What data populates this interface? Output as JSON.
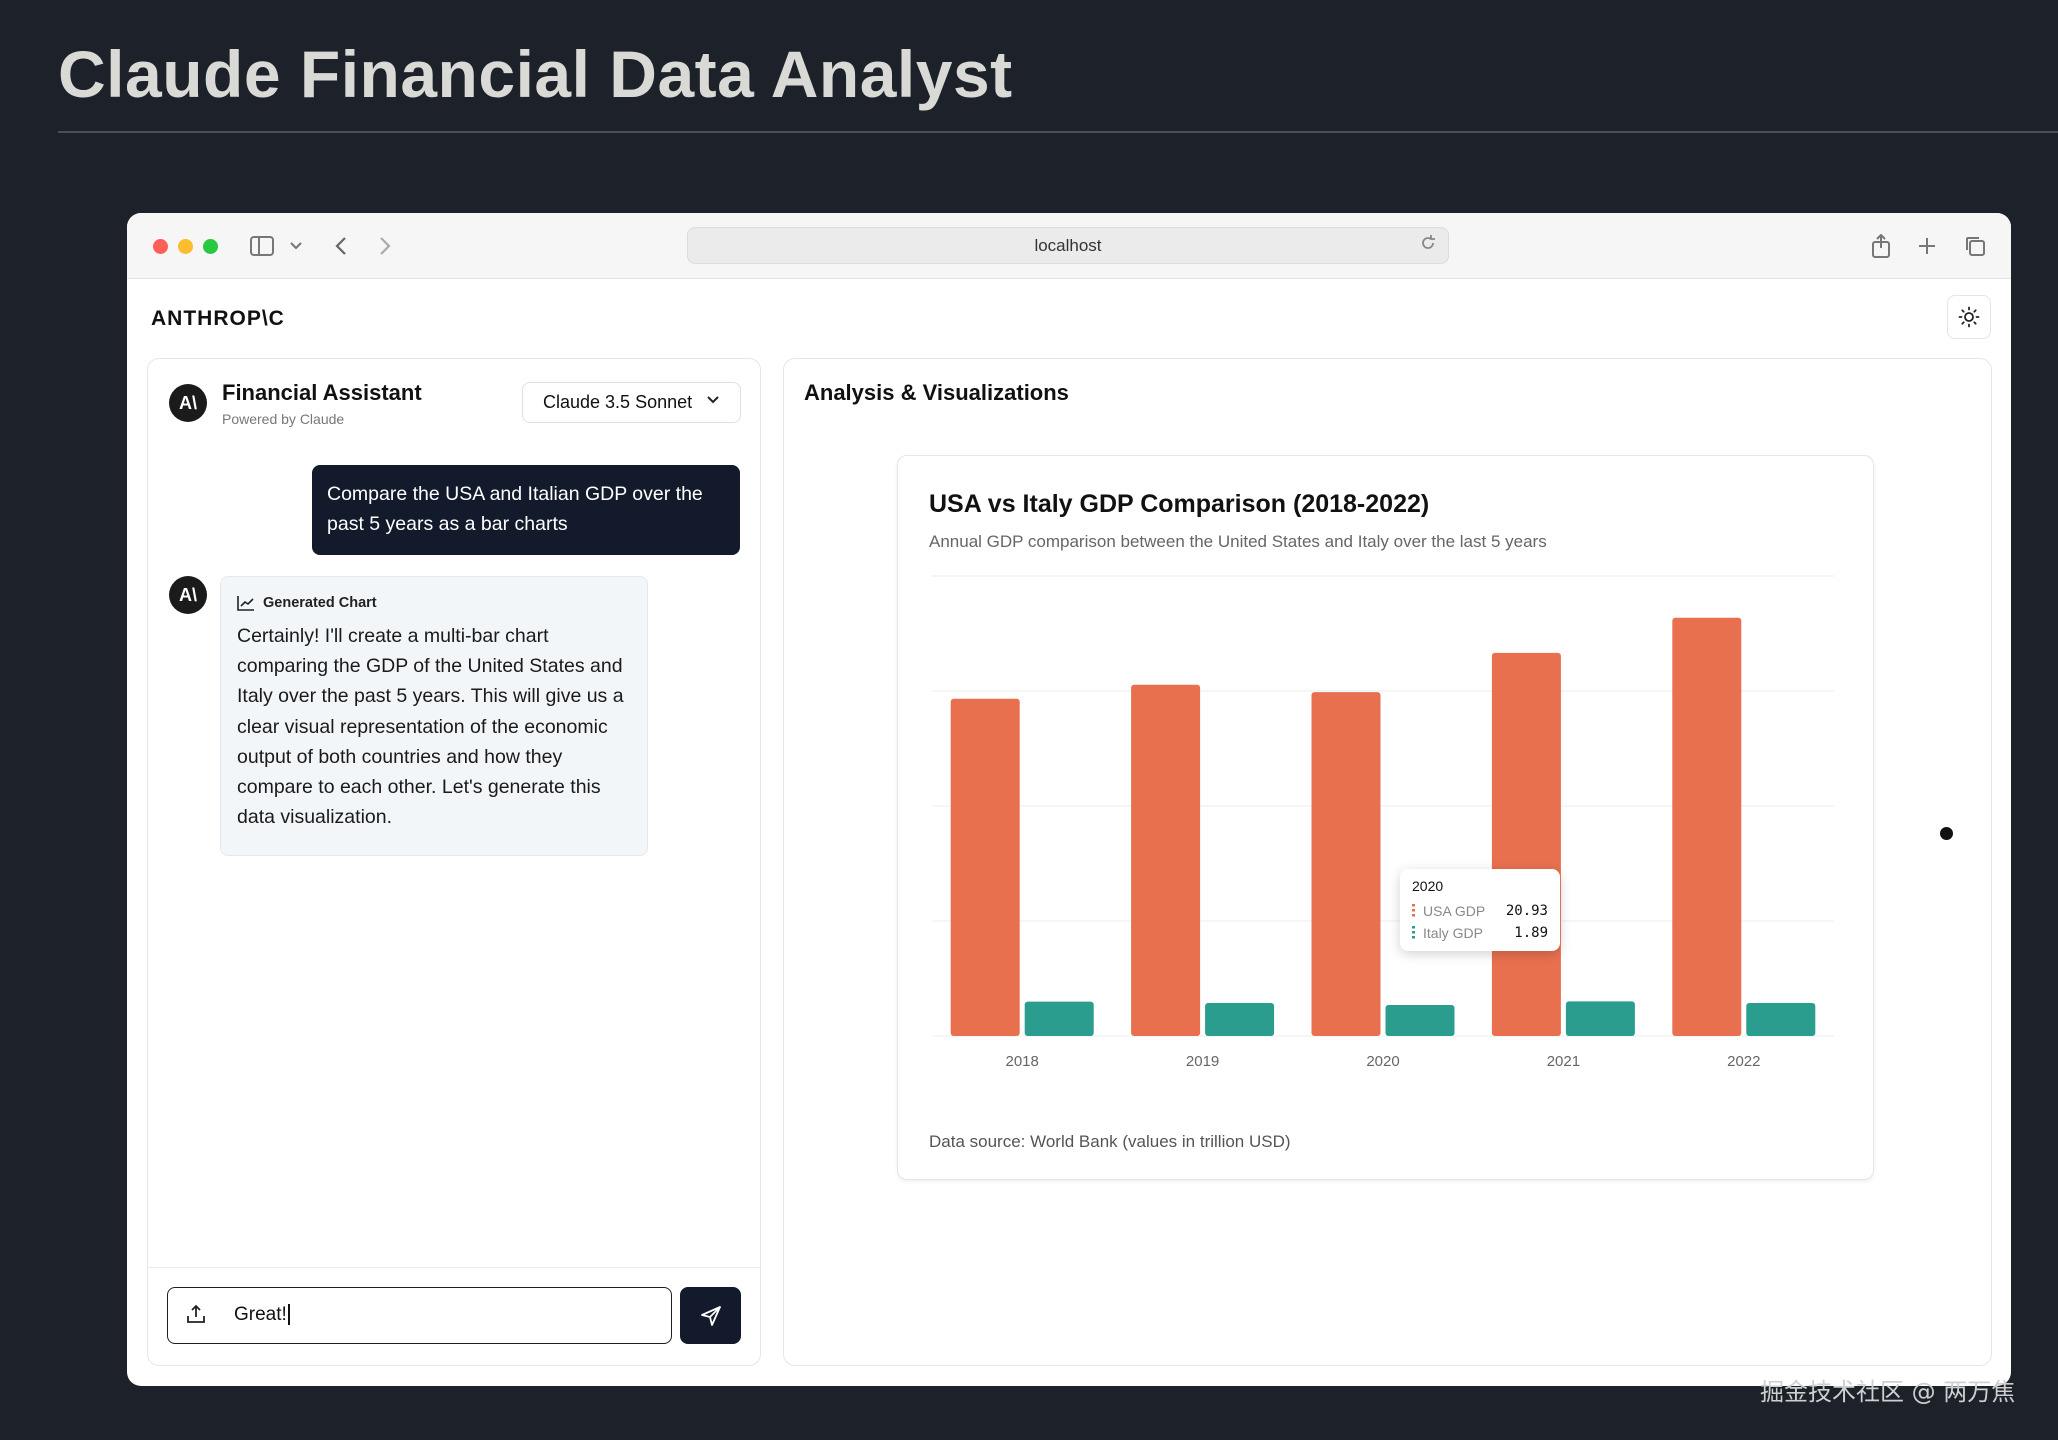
{
  "page": {
    "title": "Claude Financial Data Analyst"
  },
  "browser": {
    "url": "localhost"
  },
  "app": {
    "brand": "ANTHROP\\C"
  },
  "chat": {
    "assistant_name": "Financial Assistant",
    "powered_by": "Powered by Claude",
    "model_selected": "Claude 3.5 Sonnet",
    "avatar_text": "A\\",
    "user_message": "Compare the USA and Italian GDP over the past 5 years as a bar charts",
    "generated_label": "Generated Chart",
    "assistant_message": "Certainly! I'll create a multi-bar chart comparing the GDP of the United States and Italy over the past 5 years. This will give us a clear visual representation of the economic output of both countries and how they compare to each other. Let's generate this data visualization.",
    "input_value": "Great!"
  },
  "viz": {
    "panel_title": "Analysis & Visualizations",
    "footer": "Data source: World Bank (values in trillion USD)"
  },
  "chart_data": {
    "type": "bar",
    "title": "USA vs Italy GDP Comparison (2018-2022)",
    "subtitle": "Annual GDP comparison between the United States and Italy over the last 5 years",
    "categories": [
      "2018",
      "2019",
      "2020",
      "2021",
      "2022"
    ],
    "series": [
      {
        "name": "USA GDP",
        "values": [
          20.53,
          21.38,
          20.93,
          23.32,
          25.46
        ],
        "color": "#e8704f"
      },
      {
        "name": "Italy GDP",
        "values": [
          2.09,
          2.01,
          1.89,
          2.11,
          2.01
        ],
        "color": "#2a9d8f"
      }
    ],
    "ylim": [
      0,
      28
    ],
    "grid": true,
    "tooltip": {
      "category": "2020",
      "rows": [
        {
          "name": "USA GDP",
          "value": "20.93"
        },
        {
          "name": "Italy GDP",
          "value": "1.89"
        }
      ]
    }
  },
  "colors": {
    "accent_dark": "#131a2b",
    "usa": "#e8704f",
    "italy": "#2a9d8f"
  },
  "watermark": "掘金技术社区 @ 两万焦"
}
